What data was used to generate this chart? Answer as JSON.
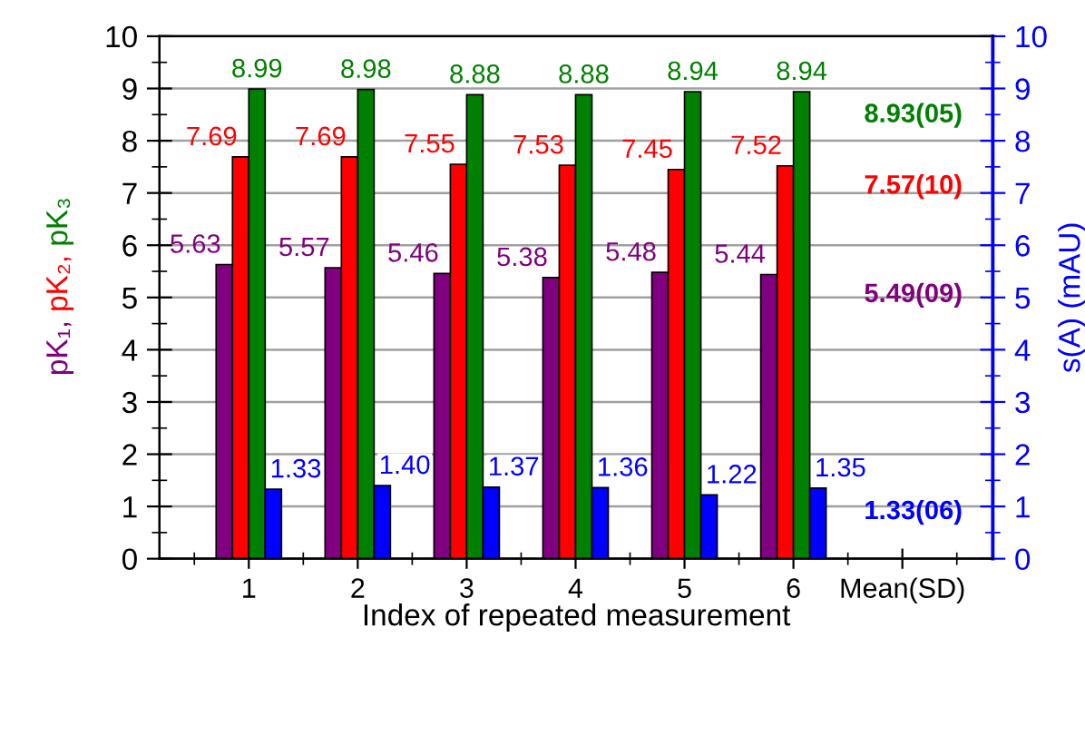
{
  "chart_data": {
    "type": "bar",
    "xlabel": "Index of repeated measurement",
    "ylabel": "pK₁, pK₂, pK₃",
    "y2label": "s(A) (mAU)",
    "categories": [
      "1",
      "2",
      "3",
      "4",
      "5",
      "6",
      "Mean(SD)"
    ],
    "series": [
      {
        "color": "#800080",
        "values": [
          5.63,
          5.57,
          5.46,
          5.38,
          5.48,
          5.44,
          null
        ],
        "value_labels": [
          "5.63",
          "5.57",
          "5.46",
          "5.38",
          "5.48",
          "5.44",
          null
        ]
      },
      {
        "color": "#ff0000",
        "values": [
          7.69,
          7.69,
          7.55,
          7.53,
          7.45,
          7.52,
          null
        ],
        "value_labels": [
          "7.69",
          "7.69",
          "7.55",
          "7.53",
          "7.45",
          "7.52",
          null
        ]
      },
      {
        "color": "#008000",
        "values": [
          8.99,
          8.98,
          8.88,
          8.88,
          8.94,
          8.94,
          null
        ],
        "value_labels": [
          "8.99",
          "8.98",
          "8.88",
          "8.88",
          "8.94",
          "8.94",
          null
        ]
      },
      {
        "color": "#0000ff",
        "axis": "y2",
        "values": [
          1.33,
          1.4,
          1.37,
          1.36,
          1.22,
          1.35,
          null
        ],
        "value_labels": [
          "1.33",
          "1.40",
          "1.37",
          "1.36",
          "1.22",
          "1.35",
          null
        ]
      }
    ],
    "annotations": [
      "5.49(09)",
      "7.57(10)",
      "8.93(05)",
      "1.33(06)"
    ],
    "ylim": [
      0,
      10
    ],
    "yticks": [
      0,
      1,
      2,
      3,
      4,
      5,
      6,
      7,
      8,
      9,
      10
    ],
    "y2lim": [
      0,
      10
    ],
    "y2ticks": [
      0,
      1,
      2,
      3,
      4,
      5,
      6,
      7,
      8,
      9,
      10
    ],
    "grid": "y"
  }
}
